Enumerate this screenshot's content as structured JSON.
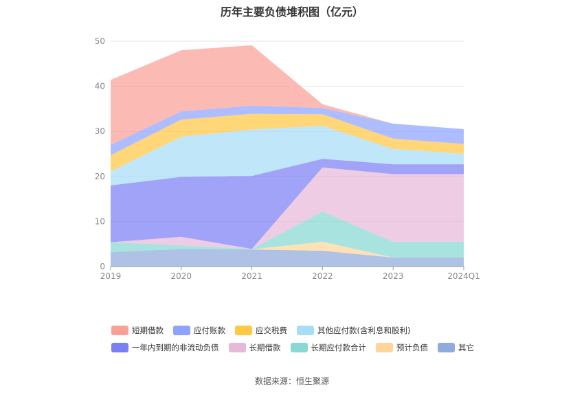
{
  "chart_data": {
    "type": "area",
    "stacked": true,
    "title": "历年主要负债堆积图（亿元）",
    "categories": [
      "2019",
      "2020",
      "2021",
      "2022",
      "2023",
      "2024Q1"
    ],
    "ylim": [
      0,
      50
    ],
    "yticks": [
      0,
      10,
      20,
      30,
      40,
      50
    ],
    "grid": true,
    "legend_position": "bottom",
    "series": [
      {
        "name": "其它",
        "color": "#8faadc",
        "values": [
          3.2,
          3.9,
          3.8,
          3.5,
          2.0,
          2.0
        ]
      },
      {
        "name": "预计负债",
        "color": "#ffd59a",
        "values": [
          0.0,
          0.0,
          0.0,
          2.0,
          0.0,
          0.0
        ]
      },
      {
        "name": "长期应付款合计",
        "color": "#88d8d4",
        "values": [
          2.2,
          0.8,
          0.1,
          6.7,
          3.5,
          3.5
        ]
      },
      {
        "name": "长期借款",
        "color": "#e8b8d8",
        "values": [
          0.0,
          1.9,
          0.0,
          9.8,
          15.0,
          15.0
        ]
      },
      {
        "name": "一年内到期的非流动负债",
        "color": "#7b7ff5",
        "values": [
          12.6,
          13.3,
          16.2,
          1.9,
          2.2,
          2.2
        ]
      },
      {
        "name": "其他应付款(含利息和股利)",
        "color": "#a8ddf7",
        "values": [
          3.1,
          8.9,
          10.3,
          7.3,
          3.4,
          2.3
        ]
      },
      {
        "name": "应交税费",
        "color": "#ffc845",
        "values": [
          3.6,
          3.8,
          3.5,
          2.6,
          2.3,
          2.2
        ]
      },
      {
        "name": "应付账款",
        "color": "#8ea3ff",
        "values": [
          2.3,
          1.8,
          1.8,
          1.4,
          3.3,
          3.3
        ]
      },
      {
        "name": "短期借款",
        "color": "#f9a197",
        "values": [
          14.4,
          13.6,
          13.4,
          0.8,
          0.0,
          0.0
        ]
      }
    ]
  },
  "legend": {
    "row1": [
      {
        "label": "短期借款",
        "color": "#f9a197"
      },
      {
        "label": "应付账款",
        "color": "#8ea3ff"
      },
      {
        "label": "应交税费",
        "color": "#ffc845"
      },
      {
        "label": "其他应付款(含利息和股利)",
        "color": "#a8ddf7"
      }
    ],
    "row2": [
      {
        "label": "一年内到期的非流动负债",
        "color": "#7b7ff5"
      },
      {
        "label": "长期借款",
        "color": "#e8b8d8"
      },
      {
        "label": "长期应付款合计",
        "color": "#88d8d4"
      },
      {
        "label": "预计负债",
        "color": "#ffd59a"
      },
      {
        "label": "其它",
        "color": "#8faadc"
      }
    ]
  },
  "source": "数据来源：恒生聚源"
}
